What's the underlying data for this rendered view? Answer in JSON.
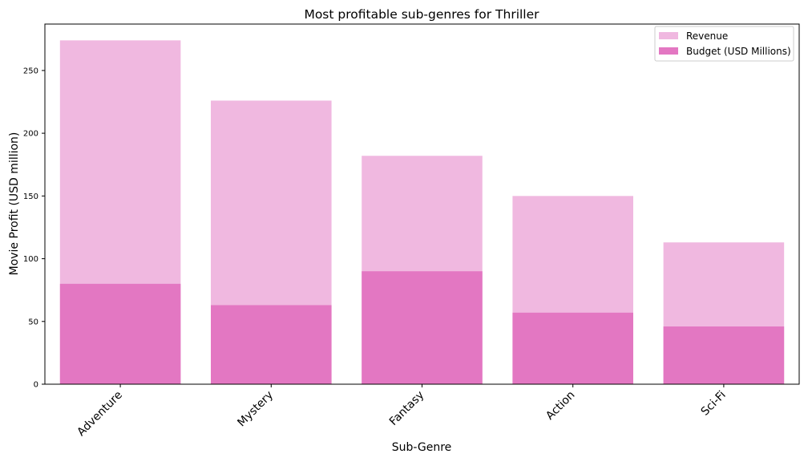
{
  "chart_data": {
    "type": "bar",
    "title": "Most profitable sub-genres for Thriller",
    "xlabel": "Sub-Genre",
    "ylabel": "Movie Profit (USD million)",
    "categories": [
      "Adventure",
      "Mystery",
      "Fantasy",
      "Action",
      "Sci-Fi"
    ],
    "series": [
      {
        "name": "Revenue",
        "values": [
          274,
          226,
          182,
          150,
          113
        ],
        "color": "#f0b8e0"
      },
      {
        "name": "Budget (USD Millions)",
        "values": [
          80,
          63,
          90,
          57,
          46
        ],
        "color": "#e377c2"
      }
    ],
    "ylim": [
      0,
      287
    ],
    "yticks": [
      0,
      50,
      100,
      150,
      200,
      250
    ],
    "grid": false,
    "legend_position": "top-right",
    "overlay": true
  }
}
